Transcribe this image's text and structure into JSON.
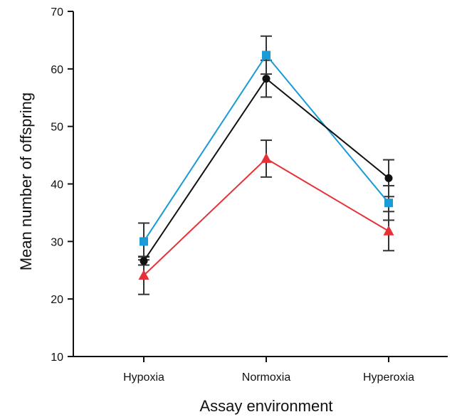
{
  "chart_data": {
    "type": "line",
    "title": "",
    "xlabel": "Assay environment",
    "ylabel": "Mean number of offspring",
    "categories": [
      "Hypoxia",
      "Normoxia",
      "Hyperoxia"
    ],
    "ylim": [
      10,
      70
    ],
    "yticks": [
      "10",
      "20",
      "30",
      "40",
      "50",
      "60",
      "70"
    ],
    "grid": false,
    "legend": "none",
    "series": [
      {
        "color": "#1a9ad6",
        "marker": "square",
        "values": [
          30.0,
          62.4,
          36.7
        ],
        "error": [
          3.2,
          3.3,
          3.0
        ]
      },
      {
        "color": "#111111",
        "marker": "circle",
        "values": [
          26.6,
          58.3,
          41.0
        ],
        "error": [
          0.7,
          3.2,
          3.2
        ]
      },
      {
        "color": "#e53238",
        "marker": "triangle",
        "values": [
          24.1,
          44.4,
          31.8
        ],
        "error": [
          3.3,
          3.2,
          3.4
        ]
      }
    ]
  }
}
